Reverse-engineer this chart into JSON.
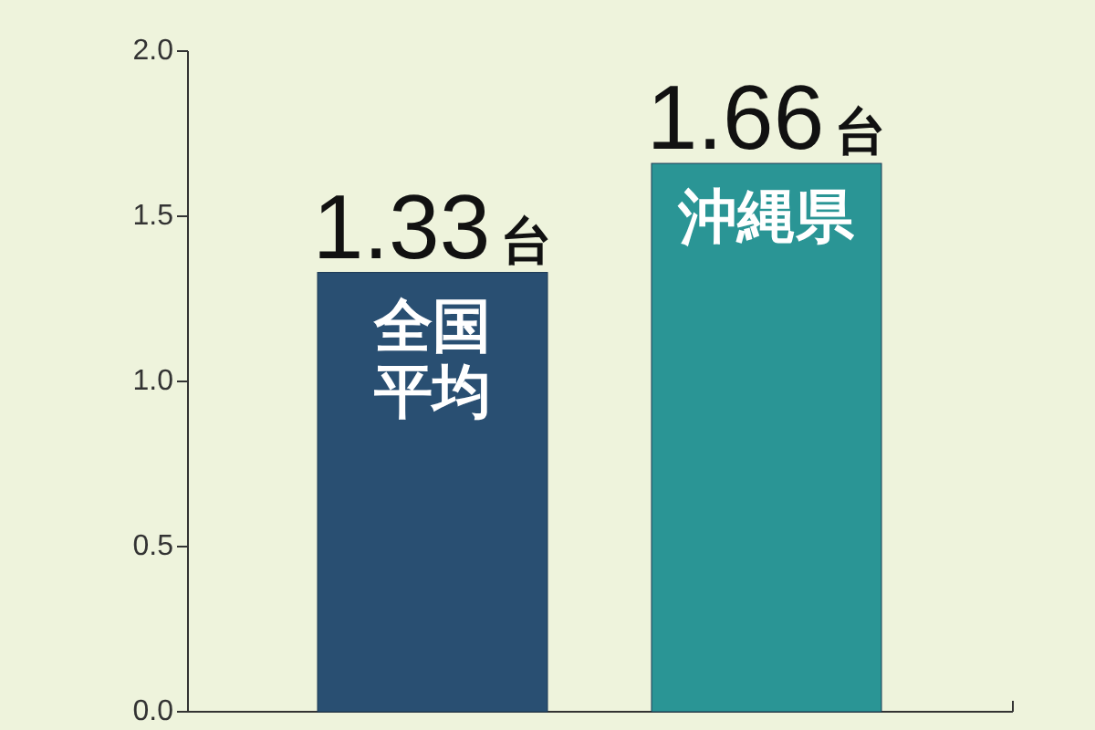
{
  "chart_data": {
    "type": "bar",
    "categories": [
      "全国平均",
      "沖縄県"
    ],
    "values": [
      1.33,
      1.66
    ],
    "colors": [
      "#294f72",
      "#2a9595"
    ],
    "value_labels": [
      "1.33台",
      "1.66台"
    ],
    "ylim": [
      0,
      2.0
    ],
    "yticks": [
      {
        "value": 0,
        "label": "0.0"
      },
      {
        "value": 0.5,
        "label": "0.5"
      },
      {
        "value": 1.0,
        "label": "1.0"
      },
      {
        "value": 1.5,
        "label": "1.5"
      },
      {
        "value": 2.0,
        "label": "2.0"
      }
    ],
    "grid": false
  }
}
